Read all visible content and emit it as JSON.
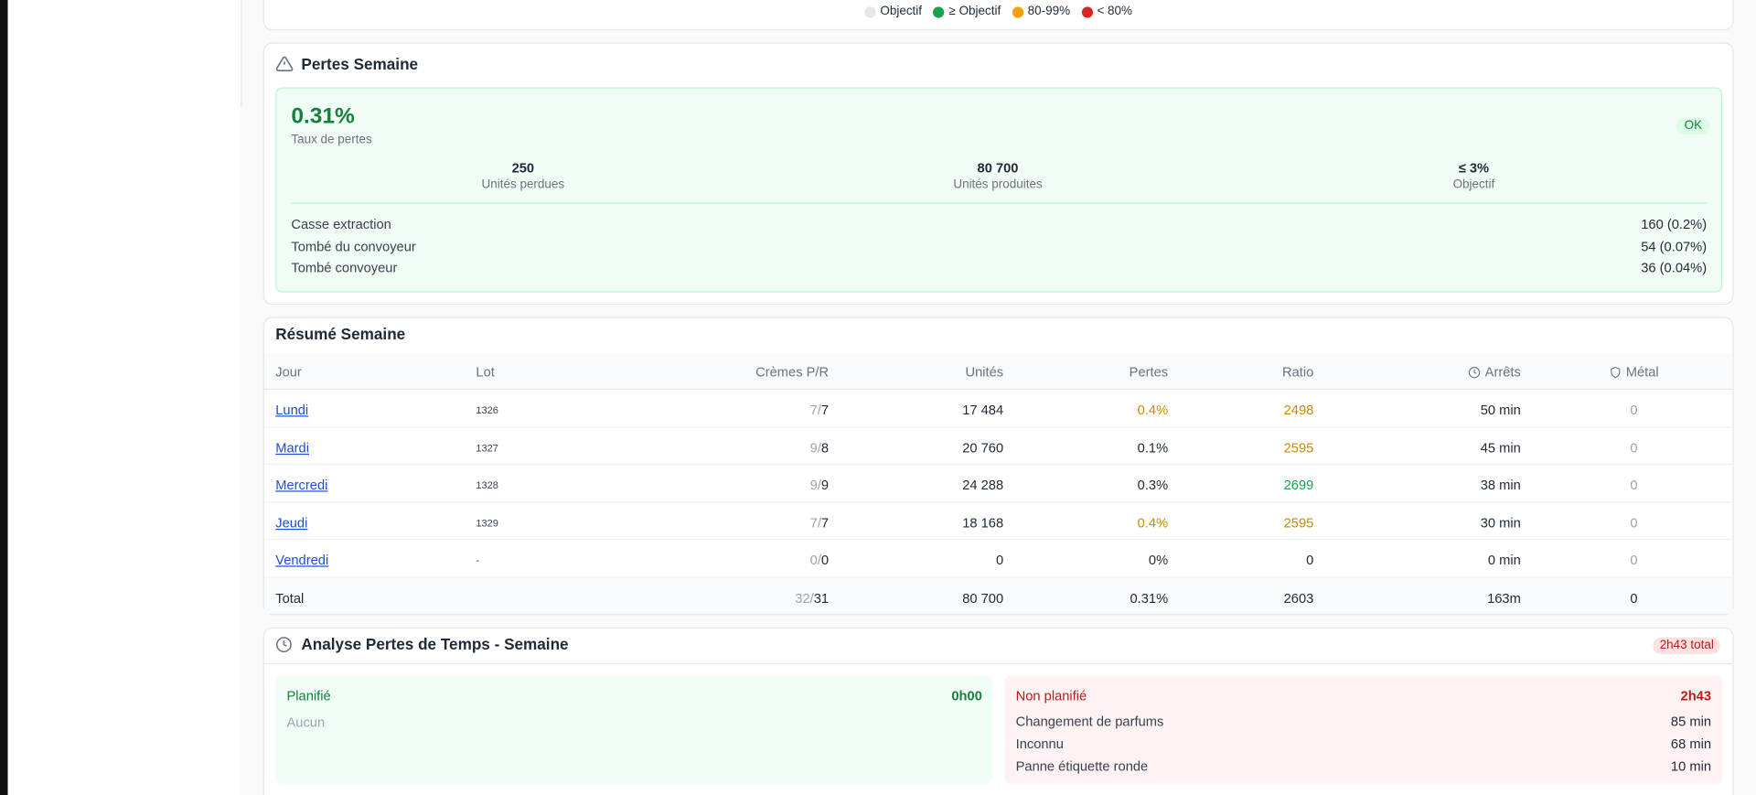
{
  "legend": [
    {
      "label": "Objectif",
      "color": "#e5e7eb"
    },
    {
      "label": "≥ Objectif",
      "color": "#16a34a"
    },
    {
      "label": "80-99%",
      "color": "#f59e0b"
    },
    {
      "label": "< 80%",
      "color": "#dc2626"
    }
  ],
  "losses": {
    "title": "Pertes Semaine",
    "rate": "0.31%",
    "rate_label": "Taux de pertes",
    "badge": "OK",
    "stats": [
      {
        "value": "250",
        "label": "Unités perdues"
      },
      {
        "value": "80 700",
        "label": "Unités produites"
      },
      {
        "value": "≤ 3%",
        "label": "Objectif"
      }
    ],
    "items": [
      {
        "label": "Casse extraction",
        "value": "160 (0.2%)"
      },
      {
        "label": "Tombé du convoyeur",
        "value": "54 (0.07%)"
      },
      {
        "label": "Tombé convoyeur",
        "value": "36 (0.04%)"
      }
    ]
  },
  "summary": {
    "title": "Résumé Semaine",
    "headers": [
      "Jour",
      "Lot",
      "Crèmes P/R",
      "Unités",
      "Pertes",
      "Ratio",
      "Arrêts",
      "Métal"
    ],
    "rows": [
      {
        "day": "Lundi",
        "lot": "1326",
        "cremes": {
          "p": "7",
          "sep": "/",
          "r": "7"
        },
        "units": "17 484",
        "losses": "0.4%",
        "ratio": "2498",
        "stops": "50 min",
        "metal": "0",
        "colors": {
          "losses": "#ca8a04",
          "ratio": "#ca8a04"
        }
      },
      {
        "day": "Mardi",
        "lot": "1327",
        "cremes": {
          "p": "9",
          "sep": "/",
          "r": "8"
        },
        "units": "20 760",
        "losses": "0.1%",
        "ratio": "2595",
        "stops": "45 min",
        "metal": "0",
        "colors": {
          "ratio": "#ca8a04"
        }
      },
      {
        "day": "Mercredi",
        "lot": "1328",
        "cremes": {
          "p": "9",
          "sep": "/",
          "r": "9"
        },
        "units": "24 288",
        "losses": "0.3%",
        "ratio": "2699",
        "stops": "38 min",
        "metal": "0",
        "colors": {
          "ratio": "#16a34a"
        }
      },
      {
        "day": "Jeudi",
        "lot": "1329",
        "cremes": {
          "p": "7",
          "sep": "/",
          "r": "7"
        },
        "units": "18 168",
        "losses": "0.4%",
        "ratio": "2595",
        "stops": "30 min",
        "metal": "0",
        "colors": {
          "losses": "#ca8a04",
          "ratio": "#ca8a04"
        }
      },
      {
        "day": "Vendredi",
        "lot": "-",
        "cremes": {
          "p": "0",
          "sep": "/",
          "r": "0"
        },
        "units": "0",
        "losses": "0%",
        "ratio": "0",
        "stops": "0 min",
        "metal": "0",
        "colors": {}
      }
    ],
    "total": {
      "day": "Total",
      "cremes": {
        "p": "32",
        "sep": "/",
        "r": "31"
      },
      "units": "80 700",
      "losses": "0.31%",
      "ratio": "2603",
      "stops": "163m",
      "metal": "0"
    }
  },
  "time": {
    "title": "Analyse Pertes de Temps - Semaine",
    "badge": "2h43 total",
    "planned": {
      "title": "Planifié",
      "total": "0h00",
      "empty": "Aucun"
    },
    "unplanned": {
      "title": "Non planifié",
      "total": "2h43",
      "items": [
        {
          "label": "Changement de parfums",
          "value": "85 min"
        },
        {
          "label": "Inconnu",
          "value": "68 min"
        },
        {
          "label": "Panne étiquette ronde",
          "value": "10 min"
        }
      ]
    }
  }
}
